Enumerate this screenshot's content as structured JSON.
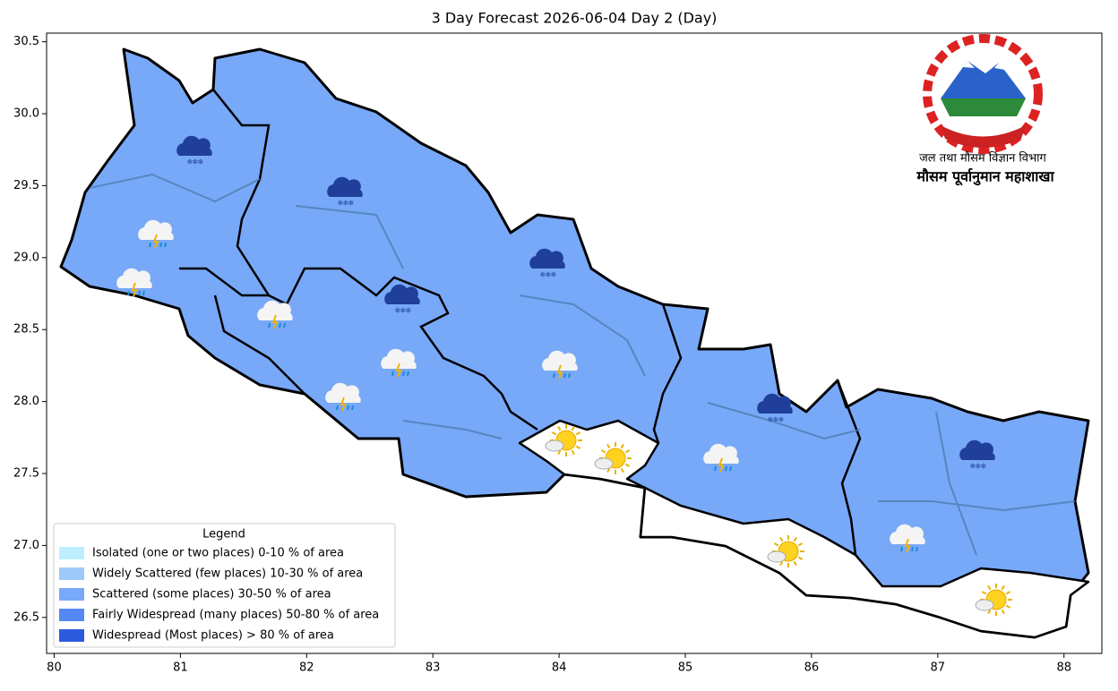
{
  "chart_data": {
    "type": "map",
    "title": "3 Day Forecast 2026-06-04 Day 2 (Day)",
    "xlim": [
      79.94,
      88.3
    ],
    "ylim": [
      26.25,
      30.56
    ],
    "xticks": [
      80,
      81,
      82,
      83,
      84,
      85,
      86,
      87,
      88
    ],
    "yticks": [
      {
        "value": 26.5,
        "label": "26.5"
      },
      {
        "value": 27,
        "label": "27.0"
      },
      {
        "value": 27.5,
        "label": "27.5"
      },
      {
        "value": 28,
        "label": "28.0"
      },
      {
        "value": 28.5,
        "label": "28.5"
      },
      {
        "value": 29,
        "label": "29.0"
      },
      {
        "value": 29.5,
        "label": "29.5"
      },
      {
        "value": 30,
        "label": "30.0"
      },
      {
        "value": 30.5,
        "label": "30.5"
      }
    ],
    "legend": {
      "title": "Legend",
      "items": [
        {
          "label": "Isolated (one or two places)  0-10 % of area",
          "color": "#bdeeff"
        },
        {
          "label": "Widely Scattered (few places)  10-30 % of area",
          "color": "#9cc9fa"
        },
        {
          "label": "Scattered (some places)  30-50 % of area",
          "color": "#78a8f8"
        },
        {
          "label": "Fairly Widespread (many places)  50-80 % of area",
          "color": "#5588f2"
        },
        {
          "label": "Widespread (Most places) > 80 % of area",
          "color": "#2c5be0"
        }
      ]
    },
    "logo": {
      "department": "जल तथा मौसम विज्ञान विभाग",
      "division": "मौसम पूर्वानुमान महाशाखा"
    }
  }
}
